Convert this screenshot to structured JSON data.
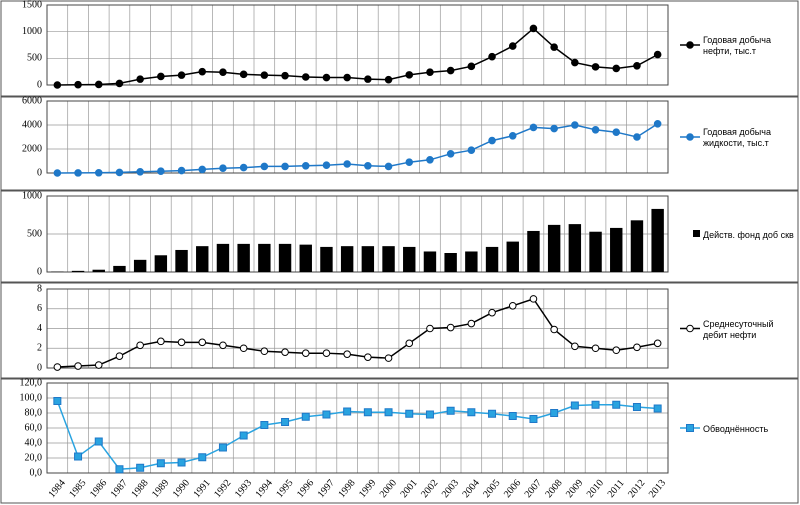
{
  "chart_data": [
    {
      "type": "line",
      "series": [
        {
          "name": "Годовая добыча нефти, тыс.т",
          "color": "#000000",
          "marker": "circle",
          "marker_fill": "#000000",
          "values": [
            0,
            5,
            10,
            30,
            110,
            160,
            185,
            250,
            240,
            200,
            185,
            175,
            150,
            140,
            140,
            110,
            100,
            190,
            240,
            270,
            350,
            530,
            730,
            1060,
            710,
            420,
            340,
            310,
            360,
            570
          ]
        }
      ],
      "ylim": [
        0,
        1500
      ],
      "yticks": [
        0,
        500,
        1000,
        1500
      ],
      "grid": true
    },
    {
      "type": "line",
      "series": [
        {
          "name": "Годовая добыча жидкости, тыс.т",
          "color": "#1f78c8",
          "marker": "circle",
          "marker_fill": "#1f78c8",
          "values": [
            0,
            10,
            20,
            50,
            100,
            150,
            200,
            300,
            400,
            450,
            550,
            550,
            600,
            650,
            750,
            600,
            550,
            900,
            1100,
            1600,
            1900,
            2700,
            3100,
            3800,
            3700,
            4000,
            3600,
            3400,
            3000,
            4100
          ]
        }
      ],
      "ylim": [
        0,
        6000
      ],
      "yticks": [
        0,
        2000,
        4000,
        6000
      ],
      "grid": true
    },
    {
      "type": "bar",
      "series": [
        {
          "name": "Действ. фонд доб скв",
          "color": "#000000",
          "values": [
            5,
            15,
            30,
            80,
            160,
            220,
            290,
            340,
            370,
            370,
            370,
            370,
            360,
            330,
            340,
            340,
            340,
            330,
            270,
            250,
            270,
            330,
            400,
            540,
            620,
            630,
            530,
            580,
            680,
            830
          ]
        }
      ],
      "ylim": [
        0,
        1000
      ],
      "yticks": [
        0,
        500,
        1000
      ],
      "grid": true
    },
    {
      "type": "line",
      "series": [
        {
          "name": "Среднесуточный дебит нефти",
          "color": "#000000",
          "marker": "circle",
          "marker_fill": "#ffffff",
          "values": [
            0.1,
            0.2,
            0.3,
            1.2,
            2.3,
            2.7,
            2.6,
            2.6,
            2.3,
            2.0,
            1.7,
            1.6,
            1.5,
            1.5,
            1.4,
            1.1,
            1.0,
            2.5,
            4.0,
            4.1,
            4.5,
            5.6,
            6.3,
            7.0,
            3.9,
            2.2,
            2.0,
            1.8,
            2.1,
            2.5
          ]
        }
      ],
      "ylim": [
        0,
        8
      ],
      "yticks": [
        0,
        2,
        4,
        6,
        8
      ],
      "grid": true
    },
    {
      "type": "line",
      "series": [
        {
          "name": "Обводнённость",
          "color": "#29a3e0",
          "marker": "square",
          "marker_fill": "#29a3e0",
          "values": [
            96,
            22,
            42,
            5,
            7,
            13,
            14,
            21,
            34,
            50,
            64,
            68,
            75,
            78,
            82,
            81,
            81,
            79,
            78,
            83,
            81,
            79,
            76,
            72,
            80,
            90,
            91,
            91,
            88,
            86
          ]
        }
      ],
      "ylim": [
        0,
        120
      ],
      "yticks": [
        {
          "value": 0,
          "label": "0,0"
        },
        {
          "value": 20,
          "label": "20,0"
        },
        {
          "value": 40,
          "label": "40,0"
        },
        {
          "value": 60,
          "label": "60,0"
        },
        {
          "value": 80,
          "label": "80,0"
        },
        {
          "value": 100,
          "label": "100,0"
        },
        {
          "value": 120,
          "label": "120,0"
        }
      ],
      "grid": true,
      "categories": [
        "1984",
        "1985",
        "1986",
        "1987",
        "1988",
        "1989",
        "1990",
        "1991",
        "1992",
        "1993",
        "1994",
        "1995",
        "1996",
        "1997",
        "1998",
        "1999",
        "2000",
        "2001",
        "2002",
        "2003",
        "2004",
        "2005",
        "2006",
        "2007",
        "2008",
        "2009",
        "2010",
        "2011",
        "2012",
        "2013"
      ]
    }
  ]
}
